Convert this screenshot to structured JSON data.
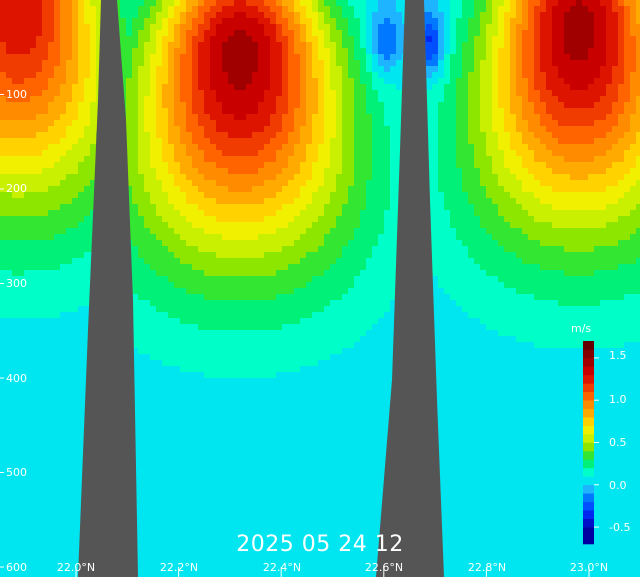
{
  "chart_data": {
    "type": "heatmap",
    "title": "",
    "timestamp": "2025 05 24 12",
    "units": "m/s",
    "x_ticks": [
      "22.0°N",
      "22.2°N",
      "22.4°N",
      "22.6°N",
      "22.8°N",
      "23.0°N"
    ],
    "x_values": [
      22.0,
      22.2,
      22.4,
      22.6,
      22.8,
      23.0
    ],
    "y_ticks": [
      "100",
      "200",
      "300",
      "400",
      "500",
      "600"
    ],
    "y_values": [
      100,
      200,
      300,
      400,
      500,
      600
    ],
    "ylim": [
      0,
      600
    ],
    "xlim": [
      21.89,
      23.12
    ],
    "y_inverted": true,
    "colorbar": {
      "ticks": [
        "1.5",
        "1.0",
        "0.5",
        "0.0",
        "-0.5"
      ],
      "tick_values": [
        1.5,
        1.0,
        0.5,
        0.0,
        -0.5
      ],
      "range": [
        -0.7,
        1.7
      ],
      "levels": [
        -0.7,
        -0.5,
        -0.4,
        -0.3,
        -0.2,
        -0.1,
        0.0,
        0.1,
        0.2,
        0.3,
        0.4,
        0.5,
        0.6,
        0.7,
        0.8,
        0.9,
        1.0,
        1.1,
        1.2,
        1.3,
        1.4,
        1.5,
        1.6,
        1.7
      ],
      "colors": [
        "#0000a0",
        "#0010c8",
        "#0028f0",
        "#0050ff",
        "#0078ff",
        "#1eb4ff",
        "#00e6f0",
        "#00ffc8",
        "#00f078",
        "#32e632",
        "#8ce600",
        "#c8f000",
        "#f0f000",
        "#ffd200",
        "#ffaa00",
        "#ff8c00",
        "#ff6400",
        "#f03c00",
        "#dc1400",
        "#c80000",
        "#a00000",
        "#820000",
        "#640000"
      ]
    },
    "land_color": "#555555",
    "cores": [
      {
        "x_range": [
          21.89,
          21.99
        ],
        "center_lat": 21.89,
        "center_depth": 0,
        "max": 1.3
      },
      {
        "x_range": [
          22.08,
          22.62
        ],
        "center_lat": 22.32,
        "center_depth": 55,
        "max": 1.45
      },
      {
        "x_range": [
          22.65,
          23.12
        ],
        "center_lat": 22.98,
        "center_depth": 25,
        "max": 1.45
      }
    ],
    "negative_pockets": [
      {
        "lat": 22.69,
        "depth": 45,
        "min": -0.4
      },
      {
        "lat": 22.6,
        "depth": 45,
        "min": -0.3
      }
    ],
    "grid": false,
    "legend_position": "right"
  }
}
